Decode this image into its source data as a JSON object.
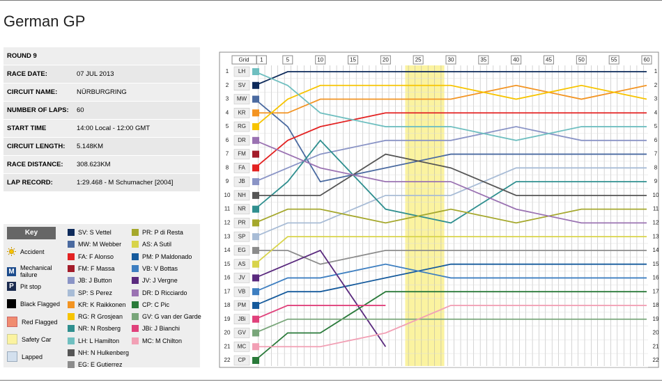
{
  "info": {
    "round": "ROUND 9",
    "rows": [
      [
        "RACE DATE:",
        "07 JUL 2013"
      ],
      [
        "CIRCUIT NAME:",
        "NÜRBURGRING"
      ],
      [
        "NUMBER OF LAPS:",
        "60"
      ],
      [
        "START TIME",
        "14:00 Local - 12:00 GMT"
      ],
      [
        "CIRCUIT LENGTH:",
        "5.148KM"
      ],
      [
        "RACE DISTANCE:",
        "308.623KM"
      ],
      [
        "LAP RECORD:",
        "1:29.468 - M Schumacher [2004]"
      ]
    ]
  },
  "key": {
    "title": "Key",
    "items": [
      "Accident",
      "Mechanical failure",
      "Pit stop",
      "Black Flagged",
      "Red Flagged",
      "Safety Car",
      "Lapped"
    ]
  },
  "chart_data": {
    "type": "lap-chart",
    "title": "German GP",
    "grid_label": "Grid",
    "x": [
      0,
      5,
      10,
      20,
      30,
      40,
      50,
      60
    ],
    "xlim": [
      0,
      60
    ],
    "xticks": [
      1,
      5,
      10,
      15,
      20,
      25,
      30,
      35,
      40,
      45,
      50,
      55,
      60
    ],
    "ylim": [
      1,
      22
    ],
    "yticks": [
      1,
      2,
      3,
      4,
      5,
      6,
      7,
      8,
      9,
      10,
      11,
      12,
      13,
      14,
      15,
      16,
      17,
      18,
      19,
      20,
      21,
      22
    ],
    "safety_car_laps": [
      23,
      29
    ],
    "series": [
      {
        "name": "SV: S Vettel",
        "code": "SV",
        "color": "#0d2a5a",
        "values": [
          2,
          1,
          1,
          1,
          1,
          1,
          1,
          1
        ]
      },
      {
        "name": "MW: M Webber",
        "code": "MW",
        "color": "#4a6aa0",
        "values": [
          3,
          5,
          9,
          8,
          7,
          7,
          7,
          7
        ]
      },
      {
        "name": "FA: F Alonso",
        "code": "FA",
        "color": "#e32222",
        "values": [
          8,
          6,
          5,
          4,
          4,
          4,
          4,
          4
        ]
      },
      {
        "name": "FM: F Massa",
        "code": "FM",
        "color": "#a31c2a",
        "values": [
          7,
          null,
          null,
          null,
          null,
          null,
          null,
          null
        ]
      },
      {
        "name": "JB: J Button",
        "code": "JB",
        "color": "#8a94c6",
        "values": [
          9,
          8,
          7,
          6,
          6,
          5,
          6,
          6
        ]
      },
      {
        "name": "SP: S Perez",
        "code": "SP",
        "color": "#a8bcd6",
        "values": [
          13,
          12,
          12,
          10,
          10,
          8,
          8,
          8
        ]
      },
      {
        "name": "KR: K Raikkonen",
        "code": "KR",
        "color": "#f39422",
        "values": [
          4,
          4,
          3,
          3,
          3,
          2,
          3,
          2
        ]
      },
      {
        "name": "RG: R Grosjean",
        "code": "RG",
        "color": "#f7c400",
        "values": [
          5,
          3,
          2,
          2,
          2,
          3,
          2,
          3
        ]
      },
      {
        "name": "NR: N Rosberg",
        "code": "NR",
        "color": "#2f8f8f",
        "values": [
          11,
          9,
          6,
          11,
          12,
          9,
          9,
          9
        ]
      },
      {
        "name": "LH: L Hamilton",
        "code": "LH",
        "color": "#6fbfc0",
        "values": [
          1,
          2,
          4,
          5,
          5,
          6,
          5,
          5
        ]
      },
      {
        "name": "NH: N Hulkenberg",
        "code": "NH",
        "color": "#555555",
        "values": [
          10,
          10,
          10,
          7,
          8,
          10,
          10,
          10
        ]
      },
      {
        "name": "EG: E Gutierrez",
        "code": "EG",
        "color": "#8c8c8c",
        "values": [
          14,
          14,
          15,
          14,
          14,
          14,
          14,
          14
        ]
      },
      {
        "name": "PR: P di Resta",
        "code": "PR",
        "color": "#a5a82c",
        "values": [
          12,
          11,
          11,
          12,
          11,
          12,
          11,
          11
        ]
      },
      {
        "name": "AS: A Sutil",
        "code": "AS",
        "color": "#d8d44a",
        "values": [
          15,
          13,
          13,
          13,
          13,
          13,
          13,
          13
        ]
      },
      {
        "name": "PM: P Maldonado",
        "code": "PM",
        "color": "#155a9c",
        "values": [
          18,
          17,
          17,
          16,
          15,
          15,
          15,
          15
        ]
      },
      {
        "name": "VB: V Bottas",
        "code": "VB",
        "color": "#3e7fc1",
        "values": [
          17,
          16,
          16,
          15,
          16,
          16,
          16,
          16
        ]
      },
      {
        "name": "JV: J Vergne",
        "code": "JV",
        "color": "#5a2a7e",
        "values": [
          16,
          15,
          14,
          21,
          null,
          null,
          null,
          null
        ]
      },
      {
        "name": "DR: D Ricciardo",
        "code": "DR",
        "color": "#9a72b2",
        "values": [
          6,
          7,
          8,
          9,
          9,
          11,
          12,
          12
        ]
      },
      {
        "name": "CP: C Pic",
        "code": "CP",
        "color": "#2a7a3a",
        "values": [
          22,
          20,
          20,
          17,
          17,
          17,
          17,
          17
        ]
      },
      {
        "name": "GV: G van der Garde",
        "code": "GV",
        "color": "#79a67a",
        "values": [
          20,
          19,
          19,
          19,
          19,
          19,
          19,
          19
        ]
      },
      {
        "name": "JBi: J Bianchi",
        "code": "JBi",
        "color": "#e0417b",
        "values": [
          19,
          18,
          18,
          18,
          null,
          null,
          null,
          null
        ]
      },
      {
        "name": "MC: M Chilton",
        "code": "MC",
        "color": "#f2a0b5",
        "values": [
          21,
          21,
          21,
          20,
          18,
          18,
          18,
          18
        ]
      }
    ]
  }
}
